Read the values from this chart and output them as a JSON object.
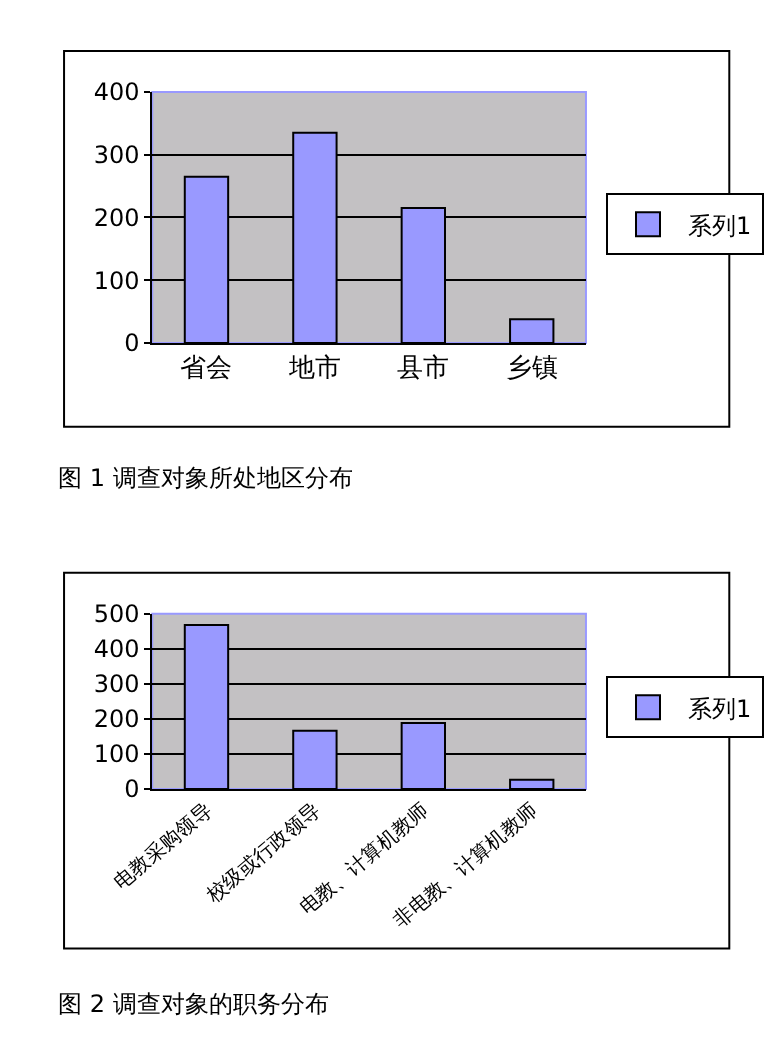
{
  "chart_data": [
    {
      "type": "bar",
      "title": "图 1 调查对象所处地区分布",
      "categories": [
        "省会",
        "地市",
        "县市",
        "乡镇"
      ],
      "series": [
        {
          "name": "系列1",
          "color": "#9999ff",
          "values": [
            265,
            335,
            215,
            38
          ]
        }
      ],
      "ylim": [
        0,
        400
      ],
      "yticks": [
        0,
        100,
        200,
        300,
        400
      ],
      "grid": "y",
      "legend": "right"
    },
    {
      "type": "bar",
      "title": "图 2 调查对象的职务分布",
      "categories": [
        "电教采购领导",
        "校级或行政领导",
        "电教、计算机教师",
        "非电教、计算机教师"
      ],
      "series": [
        {
          "name": "系列1",
          "color": "#9999ff",
          "values": [
            468,
            166,
            188,
            26
          ]
        }
      ],
      "ylim": [
        0,
        500
      ],
      "yticks": [
        0,
        100,
        200,
        300,
        400,
        500
      ],
      "grid": "y",
      "legend": "right"
    }
  ]
}
